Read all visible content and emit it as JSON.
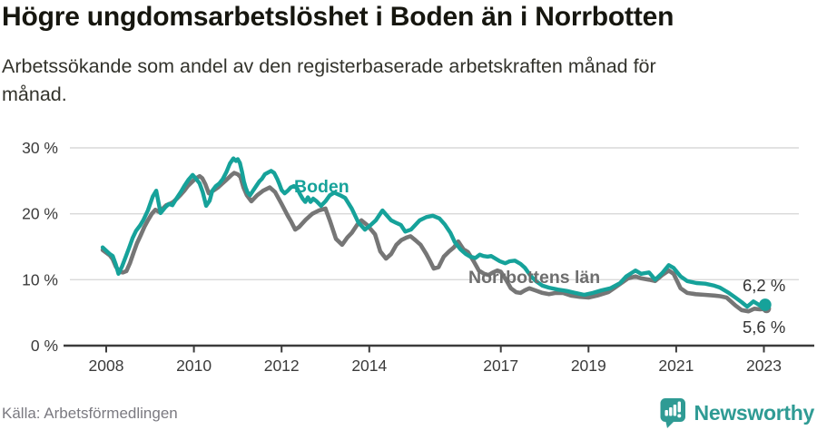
{
  "header": {
    "title": "Högre ungdomsarbetslöshet i Boden än i Norrbotten",
    "subtitle_lines": [
      "Arbetssökande som andel av den registerbaserade arbetskraften månad för",
      "månad."
    ]
  },
  "footer": {
    "source": "Källa: Arbetsförmedlingen",
    "brand": "Newsworthy"
  },
  "colors": {
    "boden": "#16a29a",
    "norrbotten": "#767676",
    "norrbotten_label": "#6e6e6e",
    "axis": "#3b3b3b",
    "grid": "#d9d9d9",
    "end_label": "#333333",
    "brand_teal": "#2f9b94"
  },
  "chart_data": {
    "type": "line",
    "title": "Högre ungdomsarbetslöshet i Boden än i Norrbotten",
    "xlabel": "",
    "ylabel": "",
    "x_ticks": [
      2008,
      2010,
      2012,
      2014,
      2017,
      2019,
      2021,
      2023
    ],
    "y_ticks": [
      0,
      10,
      20,
      30
    ],
    "y_tick_suffix": " %",
    "xlim": [
      2007.9,
      2023.4
    ],
    "ylim": [
      0,
      31
    ],
    "grid": "horizontal",
    "legend_position": "inline-labels",
    "series": [
      {
        "name": "Boden",
        "end_label": "6,2 %",
        "end_value": 6.2,
        "color": "#16a29a",
        "points": [
          [
            2007.92,
            14.9
          ],
          [
            2008.0,
            14.4
          ],
          [
            2008.08,
            13.9
          ],
          [
            2008.15,
            13.6
          ],
          [
            2008.22,
            12.3
          ],
          [
            2008.28,
            10.9
          ],
          [
            2008.36,
            12.0
          ],
          [
            2008.44,
            13.4
          ],
          [
            2008.52,
            14.8
          ],
          [
            2008.6,
            16.3
          ],
          [
            2008.68,
            17.4
          ],
          [
            2008.77,
            18.2
          ],
          [
            2008.85,
            19.1
          ],
          [
            2008.95,
            20.5
          ],
          [
            2009.06,
            22.6
          ],
          [
            2009.14,
            23.5
          ],
          [
            2009.24,
            20.1
          ],
          [
            2009.35,
            21.0
          ],
          [
            2009.43,
            21.5
          ],
          [
            2009.51,
            21.3
          ],
          [
            2009.61,
            22.4
          ],
          [
            2009.7,
            23.3
          ],
          [
            2009.78,
            24.2
          ],
          [
            2009.88,
            25.2
          ],
          [
            2009.97,
            25.9
          ],
          [
            2010.05,
            25.3
          ],
          [
            2010.13,
            24.6
          ],
          [
            2010.2,
            23.3
          ],
          [
            2010.28,
            21.2
          ],
          [
            2010.36,
            22.0
          ],
          [
            2010.42,
            23.5
          ],
          [
            2010.5,
            24.2
          ],
          [
            2010.58,
            24.6
          ],
          [
            2010.66,
            25.3
          ],
          [
            2010.74,
            26.3
          ],
          [
            2010.82,
            27.6
          ],
          [
            2010.9,
            28.4
          ],
          [
            2010.96,
            28.0
          ],
          [
            2011.0,
            28.3
          ],
          [
            2011.05,
            27.7
          ],
          [
            2011.1,
            26.3
          ],
          [
            2011.14,
            24.9
          ],
          [
            2011.18,
            24.0
          ],
          [
            2011.22,
            23.3
          ],
          [
            2011.28,
            22.8
          ],
          [
            2011.35,
            23.5
          ],
          [
            2011.42,
            24.2
          ],
          [
            2011.49,
            24.9
          ],
          [
            2011.55,
            25.3
          ],
          [
            2011.62,
            26.0
          ],
          [
            2011.7,
            26.3
          ],
          [
            2011.76,
            26.5
          ],
          [
            2011.83,
            26.2
          ],
          [
            2011.9,
            25.3
          ],
          [
            2011.95,
            24.5
          ],
          [
            2012.0,
            23.6
          ],
          [
            2012.07,
            23.1
          ],
          [
            2012.14,
            23.5
          ],
          [
            2012.21,
            24.0
          ],
          [
            2012.28,
            24.2
          ],
          [
            2012.35,
            23.9
          ],
          [
            2012.42,
            23.0
          ],
          [
            2012.48,
            22.3
          ],
          [
            2012.54,
            21.8
          ],
          [
            2012.6,
            22.5
          ],
          [
            2012.66,
            21.8
          ],
          [
            2012.72,
            22.3
          ],
          [
            2012.8,
            21.9
          ],
          [
            2012.9,
            21.2
          ],
          [
            2013.0,
            21.9
          ],
          [
            2013.1,
            22.8
          ],
          [
            2013.2,
            23.2
          ],
          [
            2013.34,
            22.8
          ],
          [
            2013.45,
            22.4
          ],
          [
            2013.6,
            20.8
          ],
          [
            2013.75,
            18.7
          ],
          [
            2013.9,
            17.6
          ],
          [
            2014.05,
            18.4
          ],
          [
            2014.15,
            19.0
          ],
          [
            2014.3,
            20.5
          ],
          [
            2014.5,
            19.0
          ],
          [
            2014.62,
            18.6
          ],
          [
            2014.72,
            18.3
          ],
          [
            2014.82,
            17.3
          ],
          [
            2014.95,
            17.6
          ],
          [
            2015.15,
            19.0
          ],
          [
            2015.3,
            19.5
          ],
          [
            2015.45,
            19.7
          ],
          [
            2015.6,
            19.3
          ],
          [
            2015.72,
            18.4
          ],
          [
            2015.85,
            17.1
          ],
          [
            2015.95,
            15.7
          ],
          [
            2016.08,
            14.6
          ],
          [
            2016.2,
            13.9
          ],
          [
            2016.3,
            13.5
          ],
          [
            2016.42,
            13.3
          ],
          [
            2016.52,
            13.8
          ],
          [
            2016.6,
            13.6
          ],
          [
            2016.7,
            13.5
          ],
          [
            2016.78,
            13.6
          ],
          [
            2016.88,
            13.2
          ],
          [
            2016.98,
            12.8
          ],
          [
            2017.1,
            12.5
          ],
          [
            2017.2,
            12.8
          ],
          [
            2017.32,
            12.9
          ],
          [
            2017.45,
            12.4
          ],
          [
            2017.55,
            11.8
          ],
          [
            2017.68,
            10.6
          ],
          [
            2017.8,
            9.8
          ],
          [
            2017.95,
            9.1
          ],
          [
            2018.1,
            8.8
          ],
          [
            2018.3,
            8.5
          ],
          [
            2018.5,
            8.3
          ],
          [
            2018.7,
            8.0
          ],
          [
            2018.9,
            7.7
          ],
          [
            2019.1,
            8.0
          ],
          [
            2019.3,
            8.4
          ],
          [
            2019.5,
            8.7
          ],
          [
            2019.72,
            9.5
          ],
          [
            2019.86,
            10.5
          ],
          [
            2020.07,
            11.4
          ],
          [
            2020.2,
            10.9
          ],
          [
            2020.38,
            11.1
          ],
          [
            2020.52,
            10.0
          ],
          [
            2020.68,
            11.0
          ],
          [
            2020.83,
            12.2
          ],
          [
            2020.94,
            11.8
          ],
          [
            2021.1,
            10.5
          ],
          [
            2021.25,
            9.8
          ],
          [
            2021.46,
            9.5
          ],
          [
            2021.66,
            9.4
          ],
          [
            2021.87,
            9.1
          ],
          [
            2022.0,
            8.8
          ],
          [
            2022.2,
            8.0
          ],
          [
            2022.35,
            7.3
          ],
          [
            2022.49,
            6.6
          ],
          [
            2022.62,
            5.9
          ],
          [
            2022.76,
            6.7
          ],
          [
            2022.91,
            6.1
          ],
          [
            2023.03,
            6.2
          ]
        ]
      },
      {
        "name": "Norrbottens län",
        "end_label": "5,6 %",
        "end_value": 5.6,
        "color": "#767676",
        "points": [
          [
            2007.92,
            14.5
          ],
          [
            2008.0,
            14.1
          ],
          [
            2008.08,
            13.7
          ],
          [
            2008.15,
            13.1
          ],
          [
            2008.22,
            12.0
          ],
          [
            2008.3,
            11.2
          ],
          [
            2008.38,
            11.1
          ],
          [
            2008.46,
            11.3
          ],
          [
            2008.54,
            12.5
          ],
          [
            2008.62,
            14.0
          ],
          [
            2008.7,
            15.5
          ],
          [
            2008.79,
            16.8
          ],
          [
            2008.87,
            18.0
          ],
          [
            2008.95,
            19.0
          ],
          [
            2009.04,
            20.0
          ],
          [
            2009.12,
            20.6
          ],
          [
            2009.2,
            20.3
          ],
          [
            2009.29,
            20.8
          ],
          [
            2009.37,
            21.3
          ],
          [
            2009.45,
            21.5
          ],
          [
            2009.53,
            21.8
          ],
          [
            2009.61,
            22.3
          ],
          [
            2009.7,
            22.9
          ],
          [
            2009.78,
            23.5
          ],
          [
            2009.86,
            24.2
          ],
          [
            2009.95,
            24.8
          ],
          [
            2010.03,
            25.3
          ],
          [
            2010.13,
            25.7
          ],
          [
            2010.19,
            25.4
          ],
          [
            2010.26,
            24.5
          ],
          [
            2010.34,
            23.1
          ],
          [
            2010.44,
            23.5
          ],
          [
            2010.55,
            24.0
          ],
          [
            2010.65,
            24.6
          ],
          [
            2010.75,
            25.2
          ],
          [
            2010.86,
            25.9
          ],
          [
            2010.92,
            26.2
          ],
          [
            2011.0,
            26.0
          ],
          [
            2011.06,
            25.6
          ],
          [
            2011.13,
            24.0
          ],
          [
            2011.21,
            22.8
          ],
          [
            2011.31,
            21.9
          ],
          [
            2011.44,
            22.8
          ],
          [
            2011.58,
            23.5
          ],
          [
            2011.73,
            24.0
          ],
          [
            2011.85,
            23.3
          ],
          [
            2012.0,
            21.5
          ],
          [
            2012.14,
            19.7
          ],
          [
            2012.22,
            18.8
          ],
          [
            2012.31,
            17.6
          ],
          [
            2012.4,
            18.0
          ],
          [
            2012.55,
            19.1
          ],
          [
            2012.7,
            20.0
          ],
          [
            2012.85,
            20.5
          ],
          [
            2013.0,
            20.8
          ],
          [
            2013.1,
            19.0
          ],
          [
            2013.24,
            16.2
          ],
          [
            2013.38,
            15.3
          ],
          [
            2013.5,
            16.4
          ],
          [
            2013.6,
            17.1
          ],
          [
            2013.72,
            18.3
          ],
          [
            2013.82,
            19.0
          ],
          [
            2013.95,
            18.3
          ],
          [
            2014.13,
            16.9
          ],
          [
            2014.25,
            14.3
          ],
          [
            2014.38,
            13.2
          ],
          [
            2014.5,
            13.9
          ],
          [
            2014.62,
            15.3
          ],
          [
            2014.73,
            16.0
          ],
          [
            2014.85,
            16.4
          ],
          [
            2014.94,
            16.6
          ],
          [
            2015.05,
            16.0
          ],
          [
            2015.17,
            15.3
          ],
          [
            2015.3,
            13.9
          ],
          [
            2015.38,
            12.9
          ],
          [
            2015.47,
            11.7
          ],
          [
            2015.58,
            11.9
          ],
          [
            2015.7,
            13.5
          ],
          [
            2015.82,
            14.3
          ],
          [
            2015.93,
            14.9
          ],
          [
            2016.03,
            15.8
          ],
          [
            2016.15,
            14.6
          ],
          [
            2016.25,
            14.2
          ],
          [
            2016.38,
            12.8
          ],
          [
            2016.5,
            11.4
          ],
          [
            2016.62,
            10.9
          ],
          [
            2016.72,
            10.7
          ],
          [
            2016.82,
            11.1
          ],
          [
            2016.92,
            11.4
          ],
          [
            2017.0,
            11.2
          ],
          [
            2017.1,
            10.2
          ],
          [
            2017.23,
            8.7
          ],
          [
            2017.35,
            8.1
          ],
          [
            2017.45,
            8.0
          ],
          [
            2017.55,
            8.4
          ],
          [
            2017.65,
            8.7
          ],
          [
            2017.78,
            8.4
          ],
          [
            2017.95,
            8.0
          ],
          [
            2018.1,
            7.8
          ],
          [
            2018.25,
            8.0
          ],
          [
            2018.42,
            8.0
          ],
          [
            2018.6,
            7.6
          ],
          [
            2018.8,
            7.4
          ],
          [
            2019.0,
            7.3
          ],
          [
            2019.2,
            7.6
          ],
          [
            2019.45,
            8.1
          ],
          [
            2019.6,
            8.8
          ],
          [
            2019.75,
            9.5
          ],
          [
            2019.9,
            10.2
          ],
          [
            2020.07,
            10.5
          ],
          [
            2020.21,
            10.2
          ],
          [
            2020.38,
            10.0
          ],
          [
            2020.52,
            9.8
          ],
          [
            2020.68,
            10.7
          ],
          [
            2020.83,
            11.4
          ],
          [
            2020.94,
            10.9
          ],
          [
            2021.1,
            8.7
          ],
          [
            2021.25,
            8.0
          ],
          [
            2021.45,
            7.8
          ],
          [
            2021.65,
            7.7
          ],
          [
            2021.87,
            7.6
          ],
          [
            2022.0,
            7.5
          ],
          [
            2022.15,
            7.3
          ],
          [
            2022.35,
            6.1
          ],
          [
            2022.49,
            5.4
          ],
          [
            2022.65,
            5.2
          ],
          [
            2022.78,
            5.6
          ],
          [
            2022.91,
            5.5
          ],
          [
            2023.06,
            5.6
          ]
        ]
      }
    ]
  }
}
